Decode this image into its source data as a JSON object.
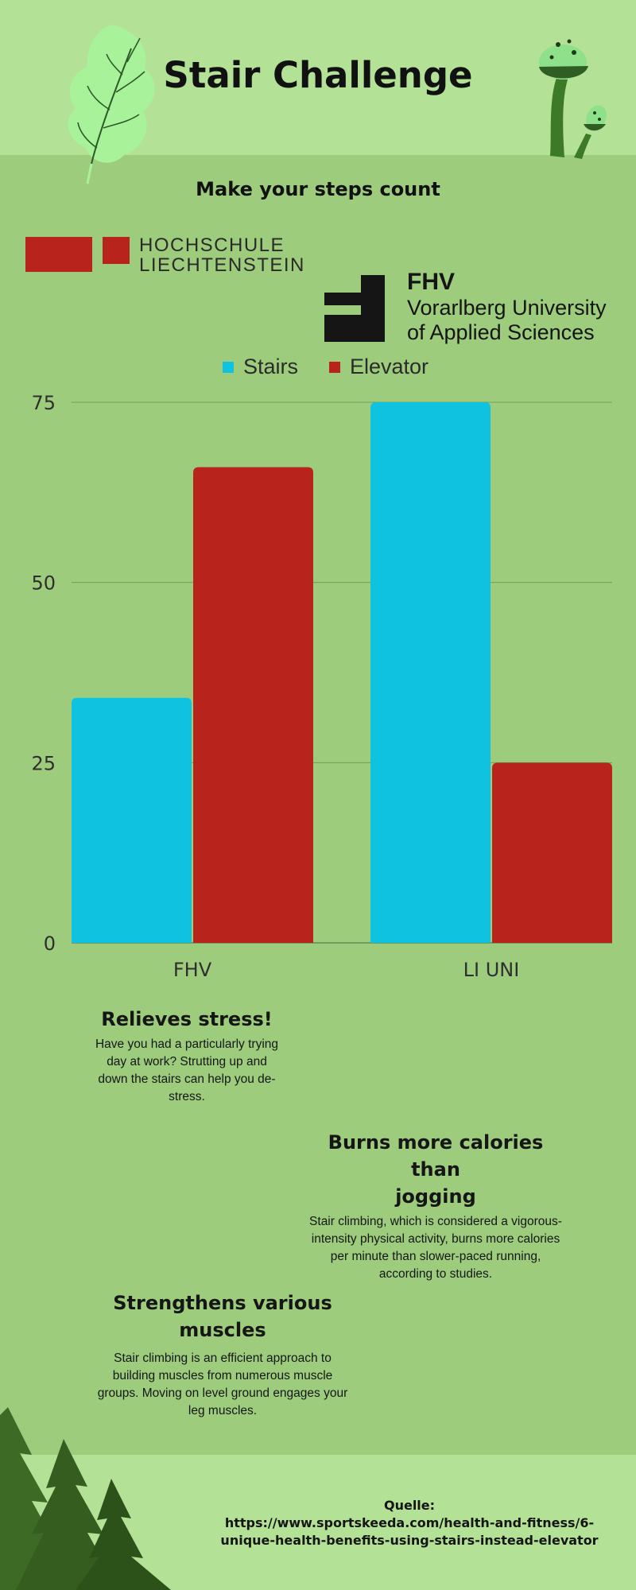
{
  "header": {
    "title": "Stair Challenge",
    "subtitle": "Make your steps count"
  },
  "logos": {
    "hochschule": {
      "line1": "HOCHSCHULE",
      "line2": "LIECHTENSTEIN",
      "color": "#b8241c"
    },
    "fhv": {
      "name": "FHV",
      "line1": "Vorarlberg University",
      "line2": "of Applied Sciences"
    }
  },
  "decorations": [
    "leaf-icon",
    "mushroom-icon",
    "pine-trees-icon"
  ],
  "colors": {
    "stairs": "#0ec2e0",
    "elevator": "#b8241c",
    "background": "#9ccc7c",
    "band": "#b3e196"
  },
  "chart_data": {
    "type": "bar",
    "categories": [
      "FHV",
      "LI UNI"
    ],
    "series": [
      {
        "name": "Stairs",
        "values": [
          34,
          75
        ]
      },
      {
        "name": "Elevator",
        "values": [
          66,
          25
        ]
      }
    ],
    "yticks": [
      "0",
      "25",
      "50",
      "75"
    ],
    "ylim": [
      0,
      75
    ],
    "grid": true,
    "legend": "top-center"
  },
  "features": [
    {
      "title": "Relieves stress!",
      "lines": [
        "Have you had a particularly trying",
        "day at work? Strutting up and",
        "down the stairs can help you de-",
        "stress."
      ]
    },
    {
      "title": "Burns more calories than jogging",
      "title_lines": [
        "Burns more calories than",
        "jogging"
      ],
      "lines": [
        "Stair climbing, which is considered a vigorous-",
        "intensity physical activity, burns more calories",
        "per minute than slower-paced running,",
        "according to studies."
      ]
    },
    {
      "title": "Strengthens various muscles",
      "lines": [
        "Stair climbing is an efficient approach to",
        "building muscles from numerous muscle",
        "groups. Moving on level ground engages your",
        "leg muscles."
      ]
    }
  ],
  "source": {
    "label": "Quelle:",
    "url_lines": [
      "https://www.sportskeeda.com/health-and-fitness/6-",
      "unique-health-benefits-using-stairs-instead-elevator"
    ]
  }
}
